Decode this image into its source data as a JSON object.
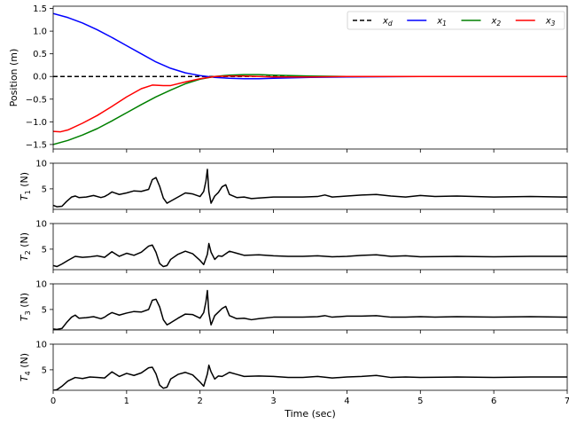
{
  "chart_data": [
    {
      "type": "line",
      "ylabel": "Position (m)",
      "xlim": [
        0,
        7
      ],
      "ylim": [
        -1.6,
        1.55
      ],
      "yticks": [
        -1.5,
        -1.0,
        -0.5,
        0.0,
        0.5,
        1.0,
        1.5
      ],
      "ytick_labels": [
        "−1.5",
        "−1.0",
        "−0.5",
        "0.0",
        "0.5",
        "1.0",
        "1.5"
      ],
      "legend_position": "top-right",
      "series": [
        {
          "name": "x_d",
          "legend_main": "x",
          "legend_sub": "d",
          "color": "#000000",
          "dash": "dashed",
          "x": [
            0,
            7
          ],
          "y": [
            0,
            0
          ]
        },
        {
          "name": "x_1",
          "legend_main": "x",
          "legend_sub": "1",
          "color": "#0000ff",
          "dash": "solid",
          "x": [
            0,
            0.2,
            0.4,
            0.6,
            0.8,
            1.0,
            1.2,
            1.4,
            1.6,
            1.8,
            2.0,
            2.2,
            2.4,
            2.6,
            2.8,
            3.0,
            3.5,
            4.0,
            5.0,
            6.0,
            7.0
          ],
          "y": [
            1.39,
            1.3,
            1.18,
            1.03,
            0.86,
            0.68,
            0.5,
            0.32,
            0.18,
            0.08,
            0.02,
            -0.02,
            -0.04,
            -0.05,
            -0.05,
            -0.04,
            -0.02,
            -0.01,
            0,
            0,
            0
          ]
        },
        {
          "name": "x_2",
          "legend_main": "x",
          "legend_sub": "2",
          "color": "#008000",
          "dash": "solid",
          "x": [
            0,
            0.2,
            0.4,
            0.6,
            0.8,
            1.0,
            1.2,
            1.4,
            1.6,
            1.8,
            2.0,
            2.2,
            2.4,
            2.6,
            2.8,
            3.0,
            3.5,
            4.0,
            5.0,
            6.0,
            7.0
          ],
          "y": [
            -1.5,
            -1.41,
            -1.29,
            -1.15,
            -0.98,
            -0.8,
            -0.62,
            -0.45,
            -0.3,
            -0.16,
            -0.06,
            0.0,
            0.03,
            0.04,
            0.04,
            0.03,
            0.01,
            0,
            0,
            0,
            0
          ]
        },
        {
          "name": "x_3",
          "legend_main": "x",
          "legend_sub": "3",
          "color": "#ff0000",
          "dash": "solid",
          "x": [
            0,
            0.1,
            0.2,
            0.4,
            0.6,
            0.8,
            1.0,
            1.2,
            1.35,
            1.5,
            1.6,
            1.8,
            2.0,
            2.2,
            2.4,
            2.6,
            2.8,
            3.0,
            3.5,
            4.0,
            5.0,
            6.0,
            7.0
          ],
          "y": [
            -1.21,
            -1.22,
            -1.18,
            -1.03,
            -0.86,
            -0.66,
            -0.45,
            -0.27,
            -0.19,
            -0.2,
            -0.2,
            -0.12,
            -0.05,
            0.0,
            0.01,
            0.01,
            0.0,
            -0.01,
            -0.01,
            0,
            0,
            0,
            0
          ]
        }
      ]
    },
    {
      "type": "line",
      "ylabel_main": "T",
      "ylabel_sub": "1",
      "ylabel_unit": " (N)",
      "xlim": [
        0,
        7
      ],
      "ylim": [
        1,
        10
      ],
      "yticks": [
        5,
        10
      ],
      "ytick_labels": [
        "5",
        "10"
      ],
      "series": [
        {
          "name": "T_1",
          "color": "#000000",
          "x": [
            0,
            0.05,
            0.12,
            0.18,
            0.25,
            0.3,
            0.35,
            0.45,
            0.55,
            0.65,
            0.7,
            0.75,
            0.8,
            0.9,
            1.0,
            1.1,
            1.2,
            1.3,
            1.35,
            1.4,
            1.45,
            1.5,
            1.55,
            1.6,
            1.7,
            1.8,
            1.9,
            2.0,
            2.05,
            2.08,
            2.1,
            2.12,
            2.15,
            2.2,
            2.25,
            2.3,
            2.35,
            2.4,
            2.5,
            2.6,
            2.7,
            2.8,
            3.0,
            3.2,
            3.4,
            3.6,
            3.7,
            3.8,
            4.0,
            4.2,
            4.4,
            4.6,
            4.8,
            5.0,
            5.2,
            5.5,
            6.0,
            6.5,
            7.0
          ],
          "y": [
            1.8,
            1.5,
            1.6,
            2.5,
            3.4,
            3.6,
            3.3,
            3.4,
            3.7,
            3.3,
            3.5,
            3.9,
            4.4,
            3.9,
            4.2,
            4.6,
            4.5,
            4.9,
            6.8,
            7.2,
            5.5,
            3.2,
            2.2,
            2.6,
            3.4,
            4.2,
            4.0,
            3.5,
            4.5,
            6.5,
            8.8,
            4.5,
            2.2,
            3.6,
            4.3,
            5.4,
            5.8,
            3.9,
            3.3,
            3.4,
            3.1,
            3.2,
            3.4,
            3.4,
            3.4,
            3.5,
            3.8,
            3.4,
            3.6,
            3.8,
            3.9,
            3.6,
            3.4,
            3.7,
            3.5,
            3.6,
            3.4,
            3.5,
            3.4
          ]
        }
      ]
    },
    {
      "type": "line",
      "ylabel_main": "T",
      "ylabel_sub": "2",
      "ylabel_unit": " (N)",
      "xlim": [
        0,
        7
      ],
      "ylim": [
        1,
        10
      ],
      "yticks": [
        5,
        10
      ],
      "ytick_labels": [
        "5",
        "10"
      ],
      "series": [
        {
          "name": "T_2",
          "color": "#000000",
          "x": [
            0,
            0.05,
            0.12,
            0.2,
            0.3,
            0.4,
            0.5,
            0.6,
            0.7,
            0.8,
            0.9,
            1.0,
            1.1,
            1.2,
            1.3,
            1.35,
            1.4,
            1.45,
            1.5,
            1.55,
            1.6,
            1.7,
            1.8,
            1.9,
            2.0,
            2.05,
            2.1,
            2.12,
            2.15,
            2.2,
            2.25,
            2.3,
            2.4,
            2.5,
            2.6,
            2.8,
            3.0,
            3.2,
            3.4,
            3.6,
            3.8,
            4.0,
            4.2,
            4.4,
            4.6,
            4.8,
            5.0,
            5.5,
            6.0,
            6.5,
            7.0
          ],
          "y": [
            1.8,
            1.6,
            2.1,
            2.8,
            3.6,
            3.4,
            3.5,
            3.7,
            3.4,
            4.5,
            3.6,
            4.2,
            3.8,
            4.4,
            5.6,
            5.8,
            4.4,
            2.2,
            1.6,
            1.8,
            3.0,
            4.0,
            4.6,
            4.1,
            2.8,
            2.0,
            4.0,
            6.1,
            4.4,
            3.0,
            3.7,
            3.6,
            4.6,
            4.2,
            3.8,
            3.9,
            3.7,
            3.6,
            3.6,
            3.7,
            3.5,
            3.6,
            3.8,
            3.9,
            3.6,
            3.7,
            3.5,
            3.6,
            3.5,
            3.6,
            3.6
          ]
        }
      ]
    },
    {
      "type": "line",
      "ylabel_main": "T",
      "ylabel_sub": "3",
      "ylabel_unit": " (N)",
      "xlim": [
        0,
        7
      ],
      "ylim": [
        1,
        10
      ],
      "yticks": [
        5,
        10
      ],
      "ytick_labels": [
        "5",
        "10"
      ],
      "series": [
        {
          "name": "T_3",
          "color": "#000000",
          "x": [
            0,
            0.05,
            0.12,
            0.18,
            0.25,
            0.3,
            0.35,
            0.45,
            0.55,
            0.65,
            0.7,
            0.75,
            0.8,
            0.9,
            1.0,
            1.1,
            1.2,
            1.3,
            1.35,
            1.4,
            1.45,
            1.5,
            1.55,
            1.6,
            1.7,
            1.8,
            1.9,
            2.0,
            2.05,
            2.08,
            2.1,
            2.12,
            2.15,
            2.2,
            2.25,
            2.3,
            2.35,
            2.4,
            2.5,
            2.6,
            2.7,
            2.8,
            3.0,
            3.2,
            3.4,
            3.6,
            3.7,
            3.8,
            4.0,
            4.2,
            4.4,
            4.6,
            4.8,
            5.0,
            5.2,
            5.5,
            6.0,
            6.5,
            7.0
          ],
          "y": [
            1.2,
            1.1,
            1.3,
            2.4,
            3.5,
            3.9,
            3.3,
            3.4,
            3.6,
            3.2,
            3.5,
            4.0,
            4.4,
            3.9,
            4.3,
            4.6,
            4.5,
            5.0,
            6.8,
            7.0,
            5.5,
            3.0,
            2.0,
            2.4,
            3.3,
            4.1,
            4.0,
            3.3,
            4.4,
            6.5,
            8.7,
            4.3,
            2.0,
            3.8,
            4.5,
            5.2,
            5.6,
            3.8,
            3.2,
            3.3,
            3.0,
            3.2,
            3.5,
            3.5,
            3.5,
            3.6,
            3.8,
            3.5,
            3.7,
            3.7,
            3.8,
            3.5,
            3.5,
            3.6,
            3.5,
            3.6,
            3.5,
            3.6,
            3.5
          ]
        }
      ]
    },
    {
      "type": "line",
      "ylabel_main": "T",
      "ylabel_sub": "4",
      "ylabel_unit": " (N)",
      "xlim": [
        0,
        7
      ],
      "ylim": [
        1,
        10
      ],
      "yticks": [
        5,
        10
      ],
      "ytick_labels": [
        "5",
        "10"
      ],
      "xlabel": "Time (sec)",
      "xticks": [
        0,
        1,
        2,
        3,
        4,
        5,
        6,
        7
      ],
      "xtick_labels": [
        "0",
        "1",
        "2",
        "3",
        "4",
        "5",
        "6",
        "7"
      ],
      "series": [
        {
          "name": "T_4",
          "color": "#000000",
          "x": [
            0,
            0.05,
            0.12,
            0.2,
            0.3,
            0.4,
            0.5,
            0.6,
            0.7,
            0.8,
            0.9,
            1.0,
            1.1,
            1.2,
            1.3,
            1.35,
            1.4,
            1.45,
            1.5,
            1.55,
            1.6,
            1.7,
            1.8,
            1.9,
            2.0,
            2.05,
            2.1,
            2.12,
            2.15,
            2.2,
            2.25,
            2.3,
            2.4,
            2.5,
            2.6,
            2.8,
            3.0,
            3.2,
            3.4,
            3.6,
            3.8,
            4.0,
            4.2,
            4.4,
            4.6,
            4.8,
            5.0,
            5.5,
            6.0,
            6.5,
            7.0
          ],
          "y": [
            1.0,
            1.1,
            1.8,
            2.8,
            3.5,
            3.3,
            3.6,
            3.5,
            3.4,
            4.6,
            3.7,
            4.3,
            3.9,
            4.4,
            5.4,
            5.5,
            4.2,
            2.0,
            1.4,
            1.6,
            3.2,
            4.1,
            4.5,
            4.0,
            2.6,
            1.8,
            4.2,
            5.9,
            4.6,
            3.2,
            3.8,
            3.7,
            4.5,
            4.1,
            3.7,
            3.8,
            3.7,
            3.5,
            3.5,
            3.7,
            3.4,
            3.6,
            3.7,
            3.9,
            3.5,
            3.6,
            3.5,
            3.6,
            3.5,
            3.6,
            3.6
          ]
        }
      ]
    }
  ]
}
